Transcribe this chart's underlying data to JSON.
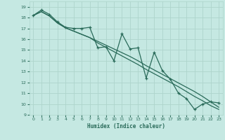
{
  "title": "",
  "xlabel": "Humidex (Indice chaleur)",
  "xlim": [
    -0.5,
    23.5
  ],
  "ylim": [
    9,
    19.5
  ],
  "yticks": [
    9,
    10,
    11,
    12,
    13,
    14,
    15,
    16,
    17,
    18,
    19
  ],
  "xticks": [
    0,
    1,
    2,
    3,
    4,
    5,
    6,
    7,
    8,
    9,
    10,
    11,
    12,
    13,
    14,
    15,
    16,
    17,
    18,
    19,
    20,
    21,
    22,
    23
  ],
  "bg_color": "#c5e8e2",
  "grid_color": "#aed4cc",
  "line_color": "#2a6b5a",
  "x": [
    0,
    1,
    2,
    3,
    4,
    5,
    6,
    7,
    8,
    9,
    10,
    11,
    12,
    13,
    14,
    15,
    16,
    17,
    18,
    19,
    20,
    21,
    22,
    23
  ],
  "y_main": [
    18.2,
    18.7,
    18.3,
    17.6,
    17.1,
    17.0,
    17.0,
    17.1,
    15.2,
    15.3,
    14.0,
    16.5,
    15.1,
    15.2,
    12.4,
    14.8,
    13.1,
    12.3,
    11.0,
    10.5,
    9.5,
    10.0,
    10.2,
    10.1
  ],
  "y_trend1": [
    18.2,
    18.55,
    18.15,
    17.5,
    17.05,
    16.75,
    16.45,
    16.15,
    15.8,
    15.45,
    15.1,
    14.75,
    14.4,
    14.0,
    13.55,
    13.15,
    12.75,
    12.35,
    11.95,
    11.55,
    11.15,
    10.7,
    10.2,
    9.7
  ],
  "y_trend2": [
    18.2,
    18.55,
    18.15,
    17.5,
    17.05,
    16.75,
    16.45,
    16.15,
    15.65,
    15.25,
    14.85,
    14.45,
    14.05,
    13.65,
    13.2,
    12.8,
    12.4,
    12.0,
    11.6,
    11.15,
    10.7,
    10.3,
    9.85,
    9.5
  ]
}
